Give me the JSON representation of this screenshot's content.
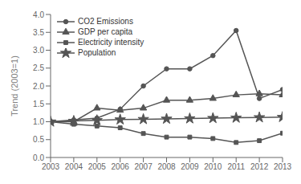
{
  "chart_data": {
    "type": "line",
    "x": [
      2003,
      2004,
      2005,
      2006,
      2007,
      2008,
      2009,
      2010,
      2011,
      2012,
      2013
    ],
    "series": [
      {
        "name": "CO2 Emissions",
        "color": "#555555",
        "marker": "circle",
        "values": [
          1.0,
          1.05,
          1.1,
          1.35,
          2.0,
          2.48,
          2.48,
          2.85,
          3.55,
          1.65,
          1.9
        ]
      },
      {
        "name": "GDP per capita",
        "color": "#555555",
        "marker": "triangle",
        "values": [
          1.0,
          1.0,
          1.38,
          1.32,
          1.38,
          1.6,
          1.6,
          1.65,
          1.75,
          1.78,
          1.75
        ]
      },
      {
        "name": "Electricity intensity",
        "color": "#555555",
        "marker": "square",
        "values": [
          1.0,
          0.93,
          0.88,
          0.83,
          0.67,
          0.57,
          0.57,
          0.53,
          0.42,
          0.47,
          0.68
        ]
      },
      {
        "name": "Population",
        "color": "#555555",
        "marker": "star",
        "values": [
          1.0,
          1.02,
          1.04,
          1.06,
          1.07,
          1.08,
          1.09,
          1.1,
          1.11,
          1.12,
          1.13
        ]
      }
    ],
    "y_label": "Trend (2003=1)",
    "xlim": [
      2003,
      2013
    ],
    "xticks": [
      2003,
      2004,
      2005,
      2006,
      2007,
      2008,
      2009,
      2010,
      2011,
      2012,
      2013
    ],
    "ylim": [
      0.0,
      4.0
    ],
    "yticks": [
      {
        "value": 0,
        "label": "0.0"
      },
      0.5,
      {
        "value": 1,
        "label": "1.0"
      },
      1.5,
      {
        "value": 2,
        "label": "2.0"
      },
      2.5,
      {
        "value": 3,
        "label": "3.0"
      },
      3.5,
      {
        "value": 4,
        "label": "4.0"
      }
    ],
    "grid": false,
    "legend": "upper left"
  }
}
